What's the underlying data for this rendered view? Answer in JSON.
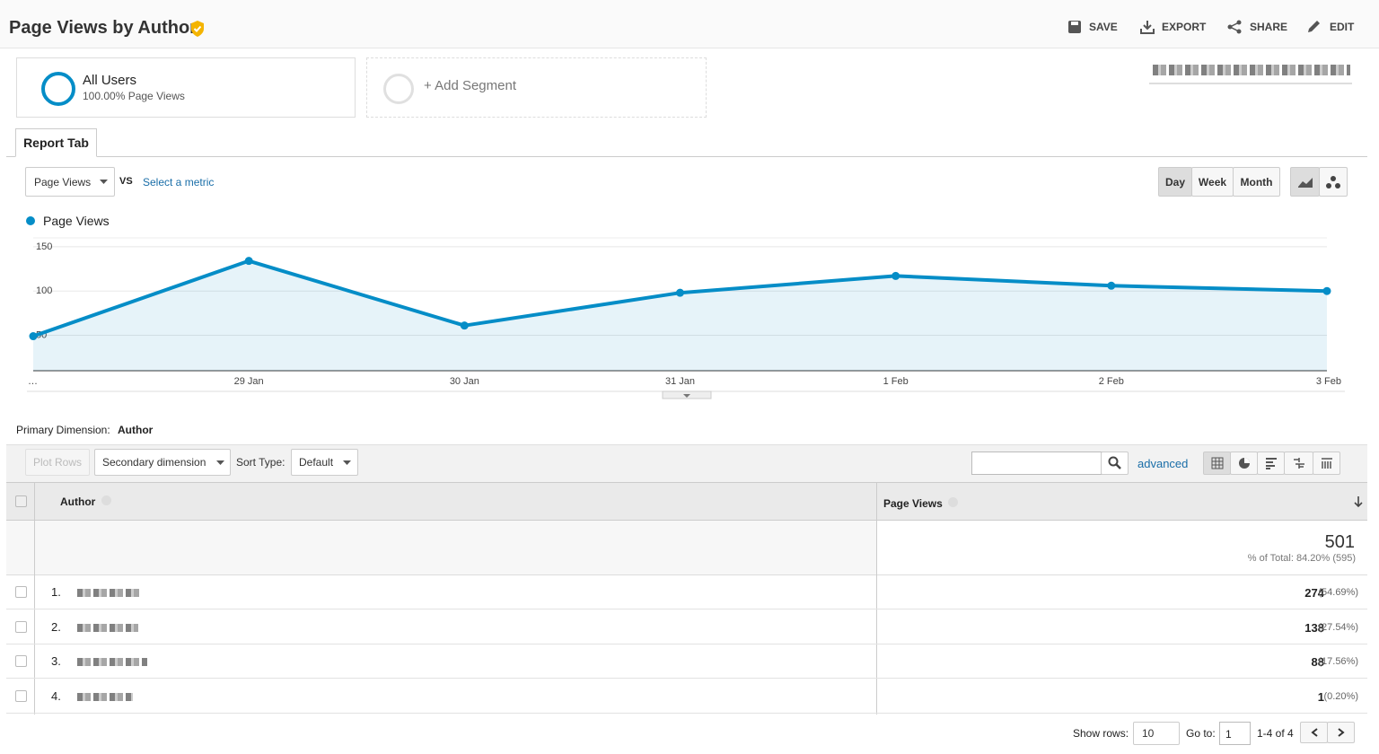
{
  "header": {
    "title": "Page Views by Author",
    "actions": [
      "SAVE",
      "EXPORT",
      "SHARE",
      "EDIT"
    ]
  },
  "segments": {
    "active": {
      "name": "All Users",
      "detail": "100.00% Page Views"
    },
    "add": "+ Add Segment"
  },
  "tabs": [
    "Report Tab"
  ],
  "metric_picker": {
    "metric": "Page Views",
    "vs": "VS",
    "select": "Select a metric"
  },
  "granularity": [
    "Day",
    "Week",
    "Month"
  ],
  "chart_data": {
    "type": "line",
    "categories": [
      "…",
      "29 Jan",
      "30 Jan",
      "31 Jan",
      "1 Feb",
      "2 Feb",
      "3 Feb"
    ],
    "series": [
      {
        "name": "Page Views",
        "color": "#058dc7",
        "values": [
          49,
          134,
          61,
          98,
          117,
          106,
          100
        ]
      }
    ],
    "ylim": [
      10,
      160
    ],
    "yticks": [
      50,
      100,
      150
    ],
    "grid": true
  },
  "dimension": {
    "label": "Primary Dimension:",
    "value": "Author"
  },
  "toolbar": {
    "plot_rows": "Plot Rows",
    "secondary": "Secondary dimension",
    "sort_label": "Sort Type:",
    "sort_value": "Default",
    "advanced": "advanced"
  },
  "table": {
    "columns": [
      "Author",
      "Page Views"
    ],
    "total": 501,
    "total_note": "% of Total: 84.20% (595)",
    "rows": [
      {
        "rank": "1.",
        "value": 274,
        "share": "(54.69%)"
      },
      {
        "rank": "2.",
        "value": 138,
        "share": "(27.54%)"
      },
      {
        "rank": "3.",
        "value": 88,
        "share": "(17.56%)"
      },
      {
        "rank": "4.",
        "value": 1,
        "share": "(0.20%)"
      }
    ]
  },
  "pagination": {
    "show_rows_label": "Show rows:",
    "show_rows": 10,
    "goto_label": "Go to:",
    "goto": 1,
    "range": "1-4 of 4"
  }
}
